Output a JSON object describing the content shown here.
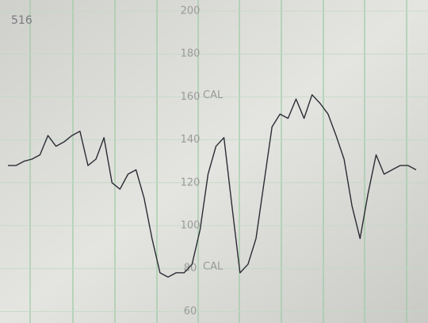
{
  "chart_data": {
    "type": "line",
    "title": "516",
    "annotations": [
      {
        "text": "CAL",
        "value": 160
      },
      {
        "text": "CAL",
        "value": 80
      }
    ],
    "values": [
      128,
      128,
      130,
      131,
      133,
      142,
      137,
      139,
      142,
      144,
      128,
      131,
      141,
      120,
      117,
      124,
      126,
      113,
      94,
      78,
      76,
      78,
      78,
      82,
      98,
      124,
      137,
      141,
      109,
      78,
      82,
      94,
      120,
      146,
      152,
      150,
      159,
      150,
      161,
      157,
      152,
      142,
      131,
      109,
      94,
      115,
      133,
      124,
      126,
      128,
      128,
      126
    ],
    "color": "#2b2b33",
    "ylim": [
      55,
      205
    ],
    "yticks": [
      60,
      80,
      100,
      120,
      140,
      160,
      180,
      200
    ],
    "grid": true
  }
}
